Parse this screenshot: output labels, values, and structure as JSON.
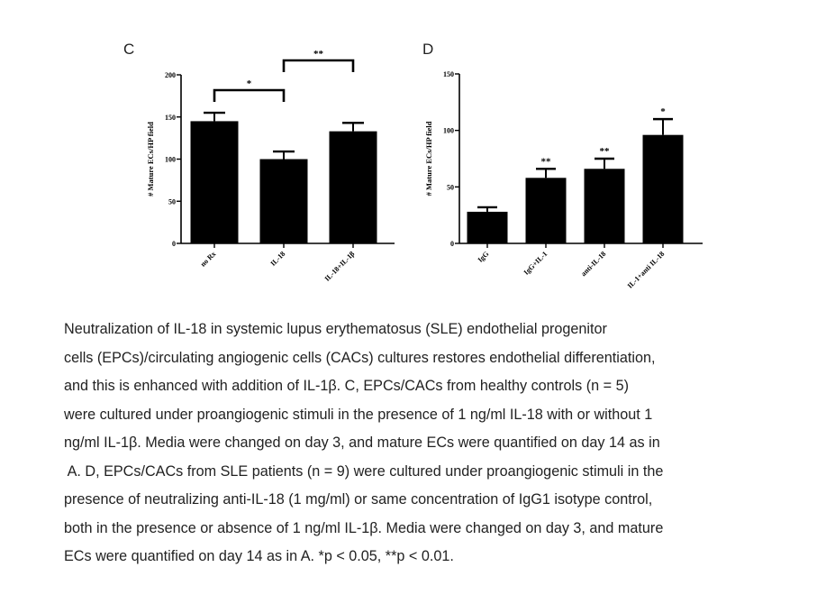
{
  "chart_data": [
    {
      "type": "bar",
      "panel": "C",
      "ylabel": "# Mature ECs/HP field",
      "ylim": [
        0,
        200
      ],
      "yticks": [
        0,
        50,
        100,
        150,
        200
      ],
      "yticklabels": [
        "0",
        "50",
        "100",
        "150",
        "200"
      ],
      "categories": [
        "no Rx",
        "IL-18",
        "IL-18+IL-1β"
      ],
      "values": [
        145,
        100,
        133
      ],
      "errors": [
        10,
        9,
        10
      ],
      "annotations": [
        {
          "from": 0,
          "to": 1,
          "label": "*"
        },
        {
          "from": 1,
          "to": 2,
          "label": "**"
        }
      ]
    },
    {
      "type": "bar",
      "panel": "D",
      "ylabel": "# Mature ECs/HP field",
      "ylim": [
        0,
        150
      ],
      "yticks": [
        0,
        50,
        100,
        150
      ],
      "yticklabels": [
        "0",
        "50",
        "100",
        "150"
      ],
      "categories": [
        "IgG",
        "IgG+IL-1",
        "anti-IL-18",
        "IL-1+anti IL-18"
      ],
      "values": [
        28,
        58,
        66,
        96
      ],
      "errors": [
        4,
        8,
        9,
        14
      ],
      "bar_labels": [
        "",
        "**",
        "**",
        "*"
      ]
    }
  ],
  "caption": [
    "Neutralization of IL-18 in systemic lupus erythematosus (SLE) endothelial progenitor",
    "cells (EPCs)/circulating angiogenic cells (CACs) cultures restores endothelial differentiation,",
    "and this is enhanced with addition of IL-1β. C, EPCs/CACs from healthy controls (n = 5)",
    "were cultured under proangiogenic stimuli in the presence of 1 ng/ml IL-18 with or without 1",
    "ng/ml IL-1β. Media were changed on day 3, and mature ECs were quantified on day 14 as in",
    " A. D, EPCs/CACs from SLE patients (n = 9) were cultured under proangiogenic stimuli in the",
    "presence of neutralizing anti-IL-18 (1 mg/ml) or same concentration of IgG1 isotype control,",
    "both in the presence or absence of 1 ng/ml IL-1β. Media were changed on day 3, and mature",
    "ECs were quantified on day 14 as in A. *p < 0.05, **p < 0.01."
  ]
}
